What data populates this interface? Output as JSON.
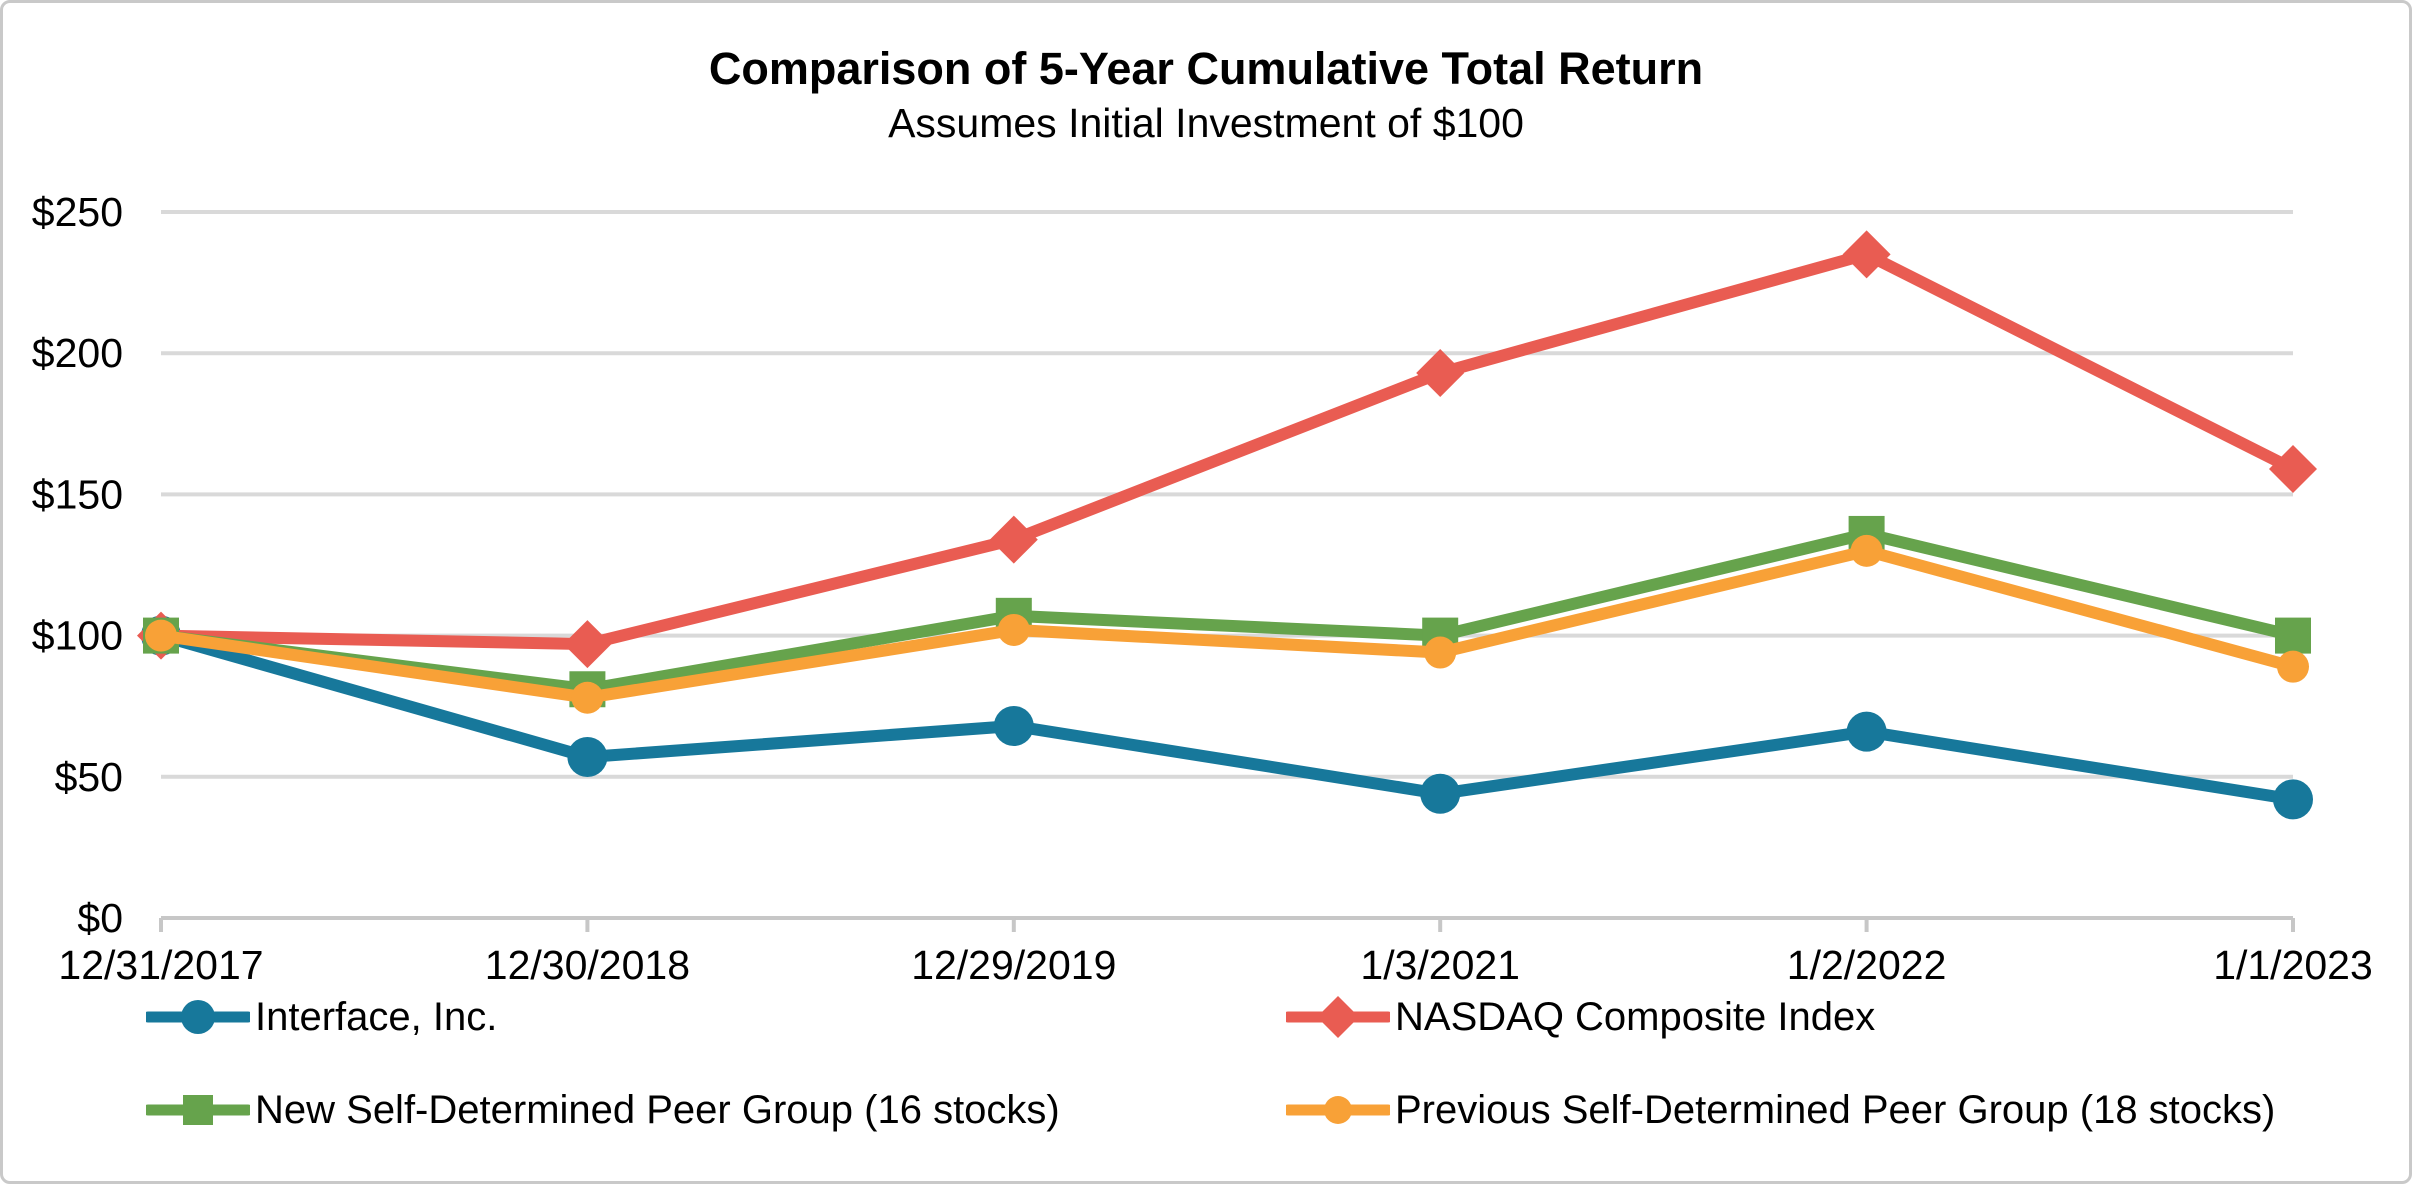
{
  "chart_data": {
    "type": "line",
    "title": "Comparison of 5-Year Cumulative Total Return",
    "subtitle": "Assumes Initial Investment of $100",
    "categories": [
      "12/31/2017",
      "12/30/2018",
      "12/29/2019",
      "1/3/2021",
      "1/2/2022",
      "1/1/2023"
    ],
    "series": [
      {
        "name": "Interface, Inc.",
        "color": "#17789b",
        "marker": "circle",
        "marker_size": 20,
        "values": [
          100,
          57,
          68,
          44,
          66,
          42
        ]
      },
      {
        "name": "NASDAQ Composite Index",
        "color": "#e95c52",
        "marker": "diamond",
        "marker_size": 22,
        "values": [
          100,
          97,
          134,
          193,
          235,
          159
        ]
      },
      {
        "name": "New Self-Determined Peer Group (16 stocks)",
        "color": "#66a34c",
        "marker": "square",
        "marker_size": 18,
        "values": [
          100,
          81,
          107,
          100,
          136,
          100
        ]
      },
      {
        "name": "Previous Self-Determined Peer Group (18 stocks)",
        "color": "#f8a137",
        "marker": "circle",
        "marker_size": 16,
        "values": [
          100,
          78,
          102,
          94,
          130,
          89
        ]
      }
    ],
    "y_axis": {
      "range": [
        0,
        250
      ],
      "ticks": [
        {
          "label": "$0",
          "value": 0
        },
        {
          "label": "$50",
          "value": 50
        },
        {
          "label": "$100",
          "value": 100
        },
        {
          "label": "$150",
          "value": 150
        },
        {
          "label": "$200",
          "value": 200
        },
        {
          "label": "$250",
          "value": 250
        }
      ]
    },
    "legend": {
      "position": "bottom",
      "columns": 2
    },
    "style": {
      "grid_color": "#d9d9d9",
      "axis_color": "#c7c7c7",
      "text_color": "#000000",
      "background": "#ffffff",
      "border_color": "#c9c9c9",
      "grid_on": true
    }
  }
}
